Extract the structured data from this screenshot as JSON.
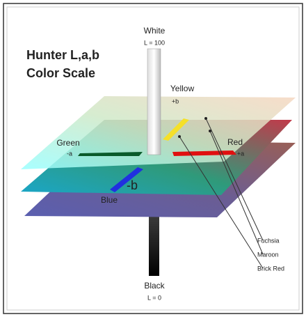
{
  "title": {
    "line1": "Hunter L,a,b",
    "line2": "Color Scale"
  },
  "axes": {
    "white": {
      "label": "White",
      "value_label": "L = 100"
    },
    "black": {
      "label": "Black",
      "value_label": "L = 0"
    },
    "yellow": {
      "label": "Yellow",
      "sign": "+b"
    },
    "blue": {
      "label": "Blue",
      "sign": "-b"
    },
    "green": {
      "label": "Green",
      "sign": "-a"
    },
    "red": {
      "label": "Red",
      "sign": "+a"
    }
  },
  "callouts": [
    "Fuchsia",
    "Maroon",
    "Brick Red"
  ]
}
